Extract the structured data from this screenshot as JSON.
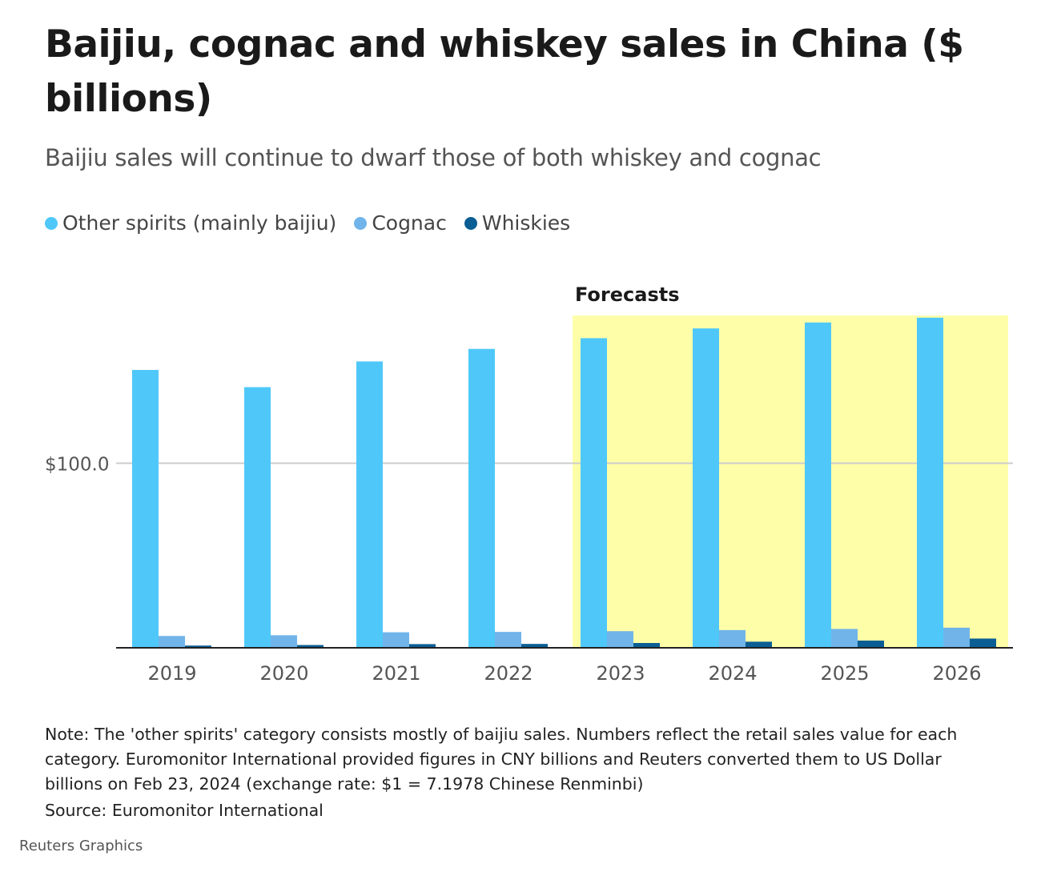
{
  "title": "Baijiu, cognac and whiskey sales in China ($ billions)",
  "subtitle": "Baijiu sales will continue to dwarf those of both whiskey and cognac",
  "legend": [
    {
      "label": "Other spirits (mainly baijiu)",
      "color": "#4fc8f9"
    },
    {
      "label": "Cognac",
      "color": "#70b4ea"
    },
    {
      "label": "Whiskies",
      "color": "#0a5e93"
    }
  ],
  "chart_data": {
    "type": "bar",
    "categories": [
      "2019",
      "2020",
      "2021",
      "2022",
      "2023",
      "2024",
      "2025",
      "2026"
    ],
    "series": [
      {
        "name": "Other spirits (mainly baijiu)",
        "color": "#4fc8f9",
        "values": [
          150.5,
          141.2,
          155.1,
          161.9,
          167.7,
          173.0,
          176.2,
          178.8
        ]
      },
      {
        "name": "Cognac",
        "color": "#70b4ea",
        "values": [
          6.4,
          6.8,
          8.4,
          8.6,
          9.0,
          9.6,
          10.2,
          10.9
        ]
      },
      {
        "name": "Whiskies",
        "color": "#0a5e93",
        "values": [
          1.2,
          1.5,
          2.0,
          2.1,
          2.6,
          3.3,
          3.9,
          5.0
        ]
      }
    ],
    "ylim": [
      0,
      180
    ],
    "yticks": [
      {
        "value": 100,
        "label": "$100.0"
      }
    ],
    "annotation": {
      "label": "Forecasts",
      "from": "2023",
      "to": "2026",
      "color": "#fefea9"
    },
    "xlabel": "",
    "ylabel": ""
  },
  "footnote": "Note: The 'other spirits' category consists mostly of baijiu sales. Numbers reflect the retail sales value for each category. Euromonitor International provided figures in CNY billions and Reuters converted them to US Dollar billions on Feb 23, 2024 (exchange rate: $1 = 7.1978 Chinese Renminbi)",
  "source": "Source: Euromonitor International",
  "credit": "Reuters Graphics"
}
